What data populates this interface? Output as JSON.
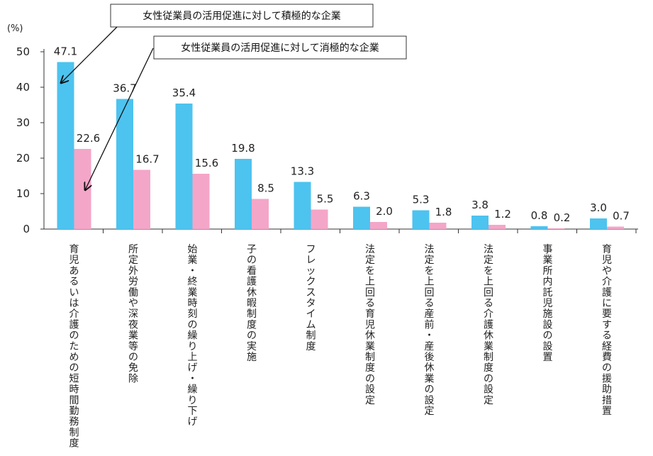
{
  "chart_data": {
    "type": "bar",
    "unit_label": "(%)",
    "ylim": [
      0,
      50
    ],
    "yticks": [
      0,
      10,
      20,
      30,
      40,
      50
    ],
    "grid": false,
    "categories": [
      "育児あるいは介護のための短時間勤務制度",
      "所定外労働や深夜業等の免除",
      "始業・終業時刻の繰り上げ・繰り下げ",
      "子の看護休暇制度の実施",
      "フレックスタイム制度",
      "法定を上回る育児休業制度の設定",
      "法定を上回る産前・産後休業の設定",
      "法定を上回る介護休業制度の設定",
      "事業所内託児施設の設置",
      "育児や介護に要する経費の援助措置"
    ],
    "series": [
      {
        "name": "女性従業員の活用促進に対して積極的な企業",
        "color": "#4DC3EF",
        "values": [
          47.1,
          36.7,
          35.4,
          19.8,
          13.3,
          6.3,
          5.3,
          3.8,
          0.8,
          3.0
        ],
        "value_labels": [
          "47.1",
          "36.7",
          "35.4",
          "19.8",
          "13.3",
          "6.3",
          "5.3",
          "3.8",
          "0.8",
          "3.0"
        ]
      },
      {
        "name": "女性従業員の活用促進に対して消極的な企業",
        "color": "#F4A6C8",
        "values": [
          22.6,
          16.7,
          15.6,
          8.5,
          5.5,
          2.0,
          1.8,
          1.2,
          0.2,
          0.7
        ],
        "value_labels": [
          "22.6",
          "16.7",
          "15.6",
          "8.5",
          "5.5",
          "2.0",
          "1.8",
          "1.2",
          "0.2",
          "0.7"
        ]
      }
    ]
  }
}
